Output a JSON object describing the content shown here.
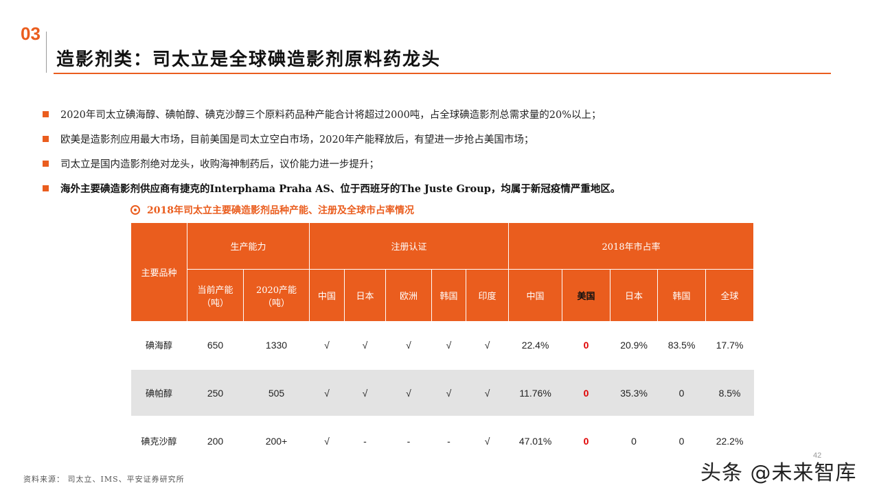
{
  "section_number": "03",
  "title": "造影剂类：司太立是全球碘造影剂原料药龙头",
  "bullets": [
    {
      "text": "2020年司太立碘海醇、碘帕醇、碘克沙醇三个原料药品种产能合计将超过2000吨，占全球碘造影剂总需求量的20%以上；"
    },
    {
      "text": "欧美是造影剂应用最大市场，目前美国是司太立空白市场，2020年产能释放后，有望进一步抢占美国市场；"
    },
    {
      "text": "司太立是国内造影剂绝对龙头，收购海神制药后，议价能力进一步提升；"
    },
    {
      "text": "海外主要碘造影剂供应商有捷克的Interphama Praha AS、位于西班牙的The Juste Group，均属于新冠疫情严重地区。"
    }
  ],
  "table": {
    "title": "2018年司太立主要碘造影剂品种产能、注册及全球市占率情况",
    "header": {
      "product": "主要品种",
      "capacity_group": "生产能力",
      "registration_group": "注册认证",
      "share_group": "2018年市占率",
      "capacity_cols": [
        "当前产能\n（吨）",
        "2020产能\n（吨）"
      ],
      "registration_cols": [
        "中国",
        "日本",
        "欧洲",
        "韩国",
        "印度"
      ],
      "share_cols": [
        "中国",
        "美国",
        "日本",
        "韩国",
        "全球"
      ]
    },
    "rows": [
      {
        "name": "碘海醇",
        "cap_now": "650",
        "cap_2020": "1330",
        "reg": [
          "√",
          "√",
          "√",
          "√",
          "√"
        ],
        "share": [
          "22.4%",
          "0",
          "20.9%",
          "83.5%",
          "17.7%"
        ]
      },
      {
        "name": "碘帕醇",
        "cap_now": "250",
        "cap_2020": "505",
        "reg": [
          "√",
          "√",
          "√",
          "√",
          "√"
        ],
        "share": [
          "11.76%",
          "0",
          "35.3%",
          "0",
          "8.5%"
        ]
      },
      {
        "name": "碘克沙醇",
        "cap_now": "200",
        "cap_2020": "200+",
        "reg": [
          "√",
          "-",
          "-",
          "-",
          "√"
        ],
        "share": [
          "47.01%",
          "0",
          "0",
          "0",
          "22.2%"
        ]
      }
    ]
  },
  "source": "资料来源： 司太立、IMS、平安证券研究所",
  "page_number": "42",
  "watermark": "头条 @未来智库",
  "colors": {
    "accent": "#ea5d1e",
    "highlight_zero": "#e00000",
    "row_gray": "#e3e3e3"
  }
}
